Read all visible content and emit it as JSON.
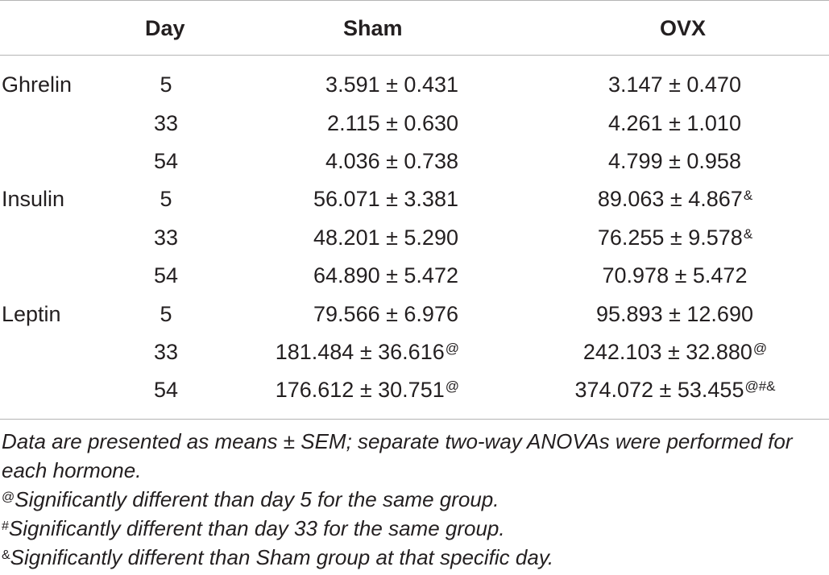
{
  "table": {
    "headers": {
      "hormone": "",
      "day": "Day",
      "sham": "Sham",
      "ovx": "OVX"
    },
    "rows": [
      {
        "hormone": "Ghrelin",
        "day": "5",
        "sham": "3.591 ± 0.431",
        "sham_sup": "",
        "ovx": "3.147 ± 0.470",
        "ovx_sup": ""
      },
      {
        "hormone": "",
        "day": "33",
        "sham": "2.115 ± 0.630",
        "sham_sup": "",
        "ovx": "4.261 ± 1.010",
        "ovx_sup": ""
      },
      {
        "hormone": "",
        "day": "54",
        "sham": "4.036 ± 0.738",
        "sham_sup": "",
        "ovx": "4.799 ± 0.958",
        "ovx_sup": ""
      },
      {
        "hormone": "Insulin",
        "day": "5",
        "sham": "56.071 ± 3.381",
        "sham_sup": "",
        "ovx": "89.063 ± 4.867",
        "ovx_sup": "&"
      },
      {
        "hormone": "",
        "day": "33",
        "sham": "48.201 ± 5.290",
        "sham_sup": "",
        "ovx": "76.255 ± 9.578",
        "ovx_sup": "&"
      },
      {
        "hormone": "",
        "day": "54",
        "sham": "64.890 ± 5.472",
        "sham_sup": "",
        "ovx": "70.978 ± 5.472",
        "ovx_sup": ""
      },
      {
        "hormone": "Leptin",
        "day": "5",
        "sham": "79.566 ± 6.976",
        "sham_sup": "",
        "ovx": "95.893 ± 12.690",
        "ovx_sup": ""
      },
      {
        "hormone": "",
        "day": "33",
        "sham": "181.484 ± 36.616",
        "sham_sup": "@",
        "ovx": "242.103 ± 32.880",
        "ovx_sup": "@"
      },
      {
        "hormone": "",
        "day": "54",
        "sham": "176.612 ± 30.751",
        "sham_sup": "@",
        "ovx": "374.072 ± 53.455",
        "ovx_sup": "@#&"
      }
    ]
  },
  "notes": {
    "main": "Data are presented as means ± SEM; separate two-way ANOVAs were performed for each hormone.",
    "footnotes": [
      {
        "symbol": "@",
        "text": "Significantly different than day 5 for the same group."
      },
      {
        "symbol": "#",
        "text": "Significantly different than day 33 for the same group."
      },
      {
        "symbol": "&",
        "text": "Significantly different than Sham group at that specific day."
      }
    ]
  }
}
